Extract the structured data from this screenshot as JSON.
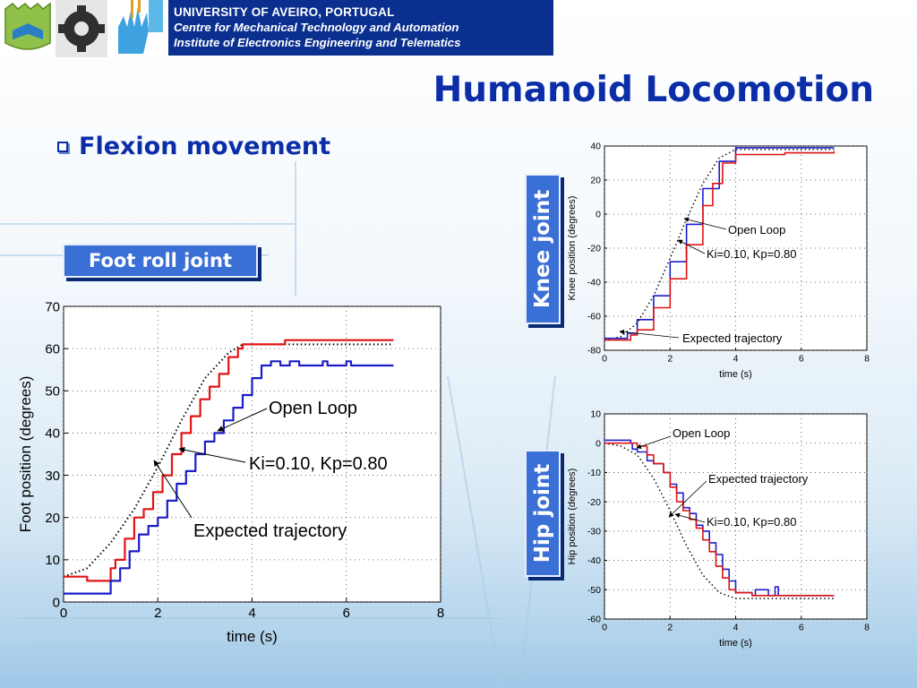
{
  "header": {
    "line1": "UNIVERSITY OF AVEIRO, PORTUGAL",
    "line2": "Centre for Mechanical Technology and Automation",
    "line3": "Institute of Electronics Engineering and Telematics"
  },
  "page_title": "Humanoid Locomotion",
  "section": {
    "bullet_text": "Flexion movement"
  },
  "labels": {
    "foot": "Foot roll joint",
    "knee": "Knee joint",
    "hip": "Hip joint"
  },
  "colors": {
    "open_loop": "#1c1cc8",
    "controlled": "#e01414",
    "expected": "#000000",
    "header_bg": "#0a2f8f",
    "title": "#0b2ea8"
  },
  "chart_data": [
    {
      "id": "foot",
      "type": "line",
      "xlabel": "time (s)",
      "ylabel": "Foot position (degrees)",
      "xlim": [
        0,
        8
      ],
      "ylim": [
        0,
        70
      ],
      "xticks": [
        0,
        2,
        4,
        6,
        8
      ],
      "yticks": [
        0,
        10,
        20,
        30,
        40,
        50,
        60,
        70
      ],
      "grid": true,
      "annotations": [
        "Open Loop",
        "Ki=0.10, Kp=0.80",
        "Expected trajectory"
      ],
      "series": [
        {
          "key": "expected",
          "style": "dotted",
          "x": [
            0,
            0.5,
            1.0,
            1.5,
            2.0,
            2.5,
            3.0,
            3.5,
            3.8,
            4.0,
            7.0
          ],
          "y": [
            6,
            8,
            14,
            22,
            32,
            43,
            53,
            59,
            61,
            61,
            61
          ]
        },
        {
          "key": "controlled",
          "style": "step",
          "x": [
            0,
            0.2,
            0.5,
            0.8,
            1.0,
            1.1,
            1.3,
            1.5,
            1.7,
            1.9,
            2.1,
            2.3,
            2.5,
            2.7,
            2.9,
            3.1,
            3.3,
            3.5,
            3.7,
            3.8,
            4.0,
            4.6,
            4.7,
            7.0
          ],
          "y": [
            6,
            6,
            5,
            5,
            8,
            10,
            15,
            20,
            22,
            26,
            30,
            35,
            40,
            44,
            48,
            51,
            54,
            58,
            60,
            61,
            61,
            61,
            62,
            62
          ]
        },
        {
          "key": "open_loop",
          "style": "step",
          "x": [
            0,
            0.3,
            0.5,
            0.8,
            1.0,
            1.2,
            1.4,
            1.6,
            1.8,
            2.0,
            2.2,
            2.4,
            2.6,
            2.8,
            3.0,
            3.2,
            3.4,
            3.6,
            3.8,
            4.0,
            4.2,
            4.4,
            4.6,
            4.8,
            5.0,
            5.5,
            5.6,
            6.0,
            6.1,
            7.0
          ],
          "y": [
            2,
            2,
            2,
            2,
            5,
            8,
            12,
            16,
            18,
            20,
            24,
            28,
            31,
            35,
            38,
            40,
            43,
            46,
            49,
            53,
            56,
            57,
            56,
            57,
            56,
            57,
            56,
            57,
            56,
            56
          ]
        }
      ]
    },
    {
      "id": "knee",
      "type": "line",
      "xlabel": "time (s)",
      "ylabel": "Knee position (degrees)",
      "xlim": [
        0,
        8
      ],
      "ylim": [
        -80,
        40
      ],
      "xticks": [
        0,
        2,
        4,
        6,
        8
      ],
      "yticks": [
        -80,
        -60,
        -40,
        -20,
        0,
        20,
        40
      ],
      "grid": true,
      "annotations": [
        "Open Loop",
        "Ki=0.10, Kp=0.80",
        "Expected trajectory"
      ],
      "series": [
        {
          "key": "expected",
          "style": "dotted",
          "x": [
            0,
            0.5,
            1.0,
            1.5,
            2.0,
            2.5,
            3.0,
            3.5,
            4.0,
            7.0
          ],
          "y": [
            -74,
            -72,
            -64,
            -48,
            -26,
            -3,
            18,
            33,
            38,
            38
          ]
        },
        {
          "key": "open_loop",
          "style": "step",
          "x": [
            0,
            0.5,
            0.7,
            1.0,
            1.5,
            2.0,
            2.5,
            3.0,
            3.5,
            4.0,
            7.0
          ],
          "y": [
            -73,
            -73,
            -70,
            -62,
            -48,
            -28,
            -6,
            15,
            31,
            39,
            39
          ]
        },
        {
          "key": "controlled",
          "style": "step",
          "x": [
            0,
            0.5,
            0.8,
            1.0,
            1.5,
            2.0,
            2.5,
            3.0,
            3.3,
            3.6,
            4.0,
            5.5,
            7.0
          ],
          "y": [
            -74,
            -74,
            -71,
            -68,
            -55,
            -38,
            -18,
            5,
            18,
            30,
            35,
            36,
            37
          ]
        }
      ]
    },
    {
      "id": "hip",
      "type": "line",
      "xlabel": "time (s)",
      "ylabel": "Hip position (degrees)",
      "xlim": [
        0,
        8
      ],
      "ylim": [
        -60,
        10
      ],
      "xticks": [
        0,
        2,
        4,
        6,
        8
      ],
      "yticks": [
        -60,
        -50,
        -40,
        -30,
        -20,
        -10,
        0,
        10
      ],
      "grid": true,
      "annotations": [
        "Open Loop",
        "Expected trajectory",
        "Ki=0.10, Kp=0.80"
      ],
      "series": [
        {
          "key": "expected",
          "style": "dotted",
          "x": [
            0,
            0.5,
            1.0,
            1.5,
            2.0,
            2.5,
            3.0,
            3.5,
            4.0,
            7.0
          ],
          "y": [
            0,
            -1,
            -4,
            -12,
            -23,
            -35,
            -45,
            -51,
            -53,
            -53
          ]
        },
        {
          "key": "open_loop",
          "style": "step",
          "x": [
            0,
            0.5,
            0.8,
            0.85,
            1.0,
            1.3,
            1.5,
            1.8,
            2.0,
            2.2,
            2.4,
            2.6,
            2.8,
            3.0,
            3.2,
            3.4,
            3.6,
            3.8,
            4.0,
            4.5,
            4.6,
            5.0,
            5.2,
            5.3,
            6.0,
            7.0
          ],
          "y": [
            1,
            1,
            0,
            -2,
            -3,
            -6,
            -7,
            -10,
            -14,
            -17,
            -22,
            -24,
            -28,
            -30,
            -34,
            -38,
            -43,
            -47,
            -51,
            -52,
            -50,
            -52,
            -49,
            -52,
            -52,
            -52
          ]
        },
        {
          "key": "controlled",
          "style": "step",
          "x": [
            0,
            0.5,
            1.0,
            1.3,
            1.5,
            1.8,
            2.0,
            2.2,
            2.4,
            2.6,
            2.8,
            3.0,
            3.2,
            3.4,
            3.6,
            3.8,
            4.0,
            4.5,
            5.0,
            7.0
          ],
          "y": [
            0,
            0,
            -1,
            -4,
            -7,
            -10,
            -15,
            -20,
            -23,
            -26,
            -29,
            -33,
            -37,
            -42,
            -46,
            -50,
            -51,
            -52,
            -52,
            -52
          ]
        }
      ]
    }
  ]
}
